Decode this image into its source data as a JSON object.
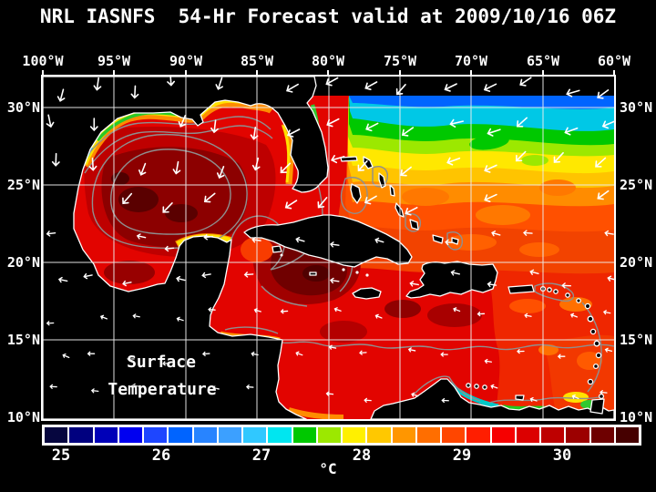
{
  "title": "NRL IASNFS  54-Hr Forecast valid at 2009/10/16 06Z",
  "axes": {
    "lon_labels": [
      "100°W",
      "95°W",
      "90°W",
      "85°W",
      "80°W",
      "75°W",
      "70°W",
      "65°W",
      "60°W"
    ],
    "lat_labels_left": [
      "30°N",
      "25°N",
      "20°N",
      "15°N",
      "10°N"
    ],
    "lat_labels_right": [
      "30°N",
      "25°N",
      "20°N",
      "15°N",
      "10°N"
    ]
  },
  "map_annotation": {
    "line1": "Surface",
    "line2": "Temperature"
  },
  "colorbar": {
    "tick_labels": [
      "25",
      "26",
      "27",
      "28",
      "29",
      "30"
    ],
    "unit": "°C",
    "colors": [
      "#06063F",
      "#00007F",
      "#0000B8",
      "#0000F0",
      "#1E46FF",
      "#0064FF",
      "#2884FF",
      "#3CA0FF",
      "#30C8FF",
      "#00E6F0",
      "#00C800",
      "#9CE800",
      "#FFF000",
      "#FFC800",
      "#FF9600",
      "#FF6E00",
      "#FF4600",
      "#FF1E00",
      "#F60000",
      "#DC0000",
      "#BE0000",
      "#9C0000",
      "#6E0000",
      "#460000"
    ]
  },
  "colors": {
    "background": "#000000",
    "frame": "#FFFFFF",
    "grid_lines": "#FFFFFF",
    "coastline": "#FFFFFF",
    "ocean_contour": "#8F8F8F",
    "wind_arrow": "#FFFFFF",
    "land": "#000000"
  }
}
